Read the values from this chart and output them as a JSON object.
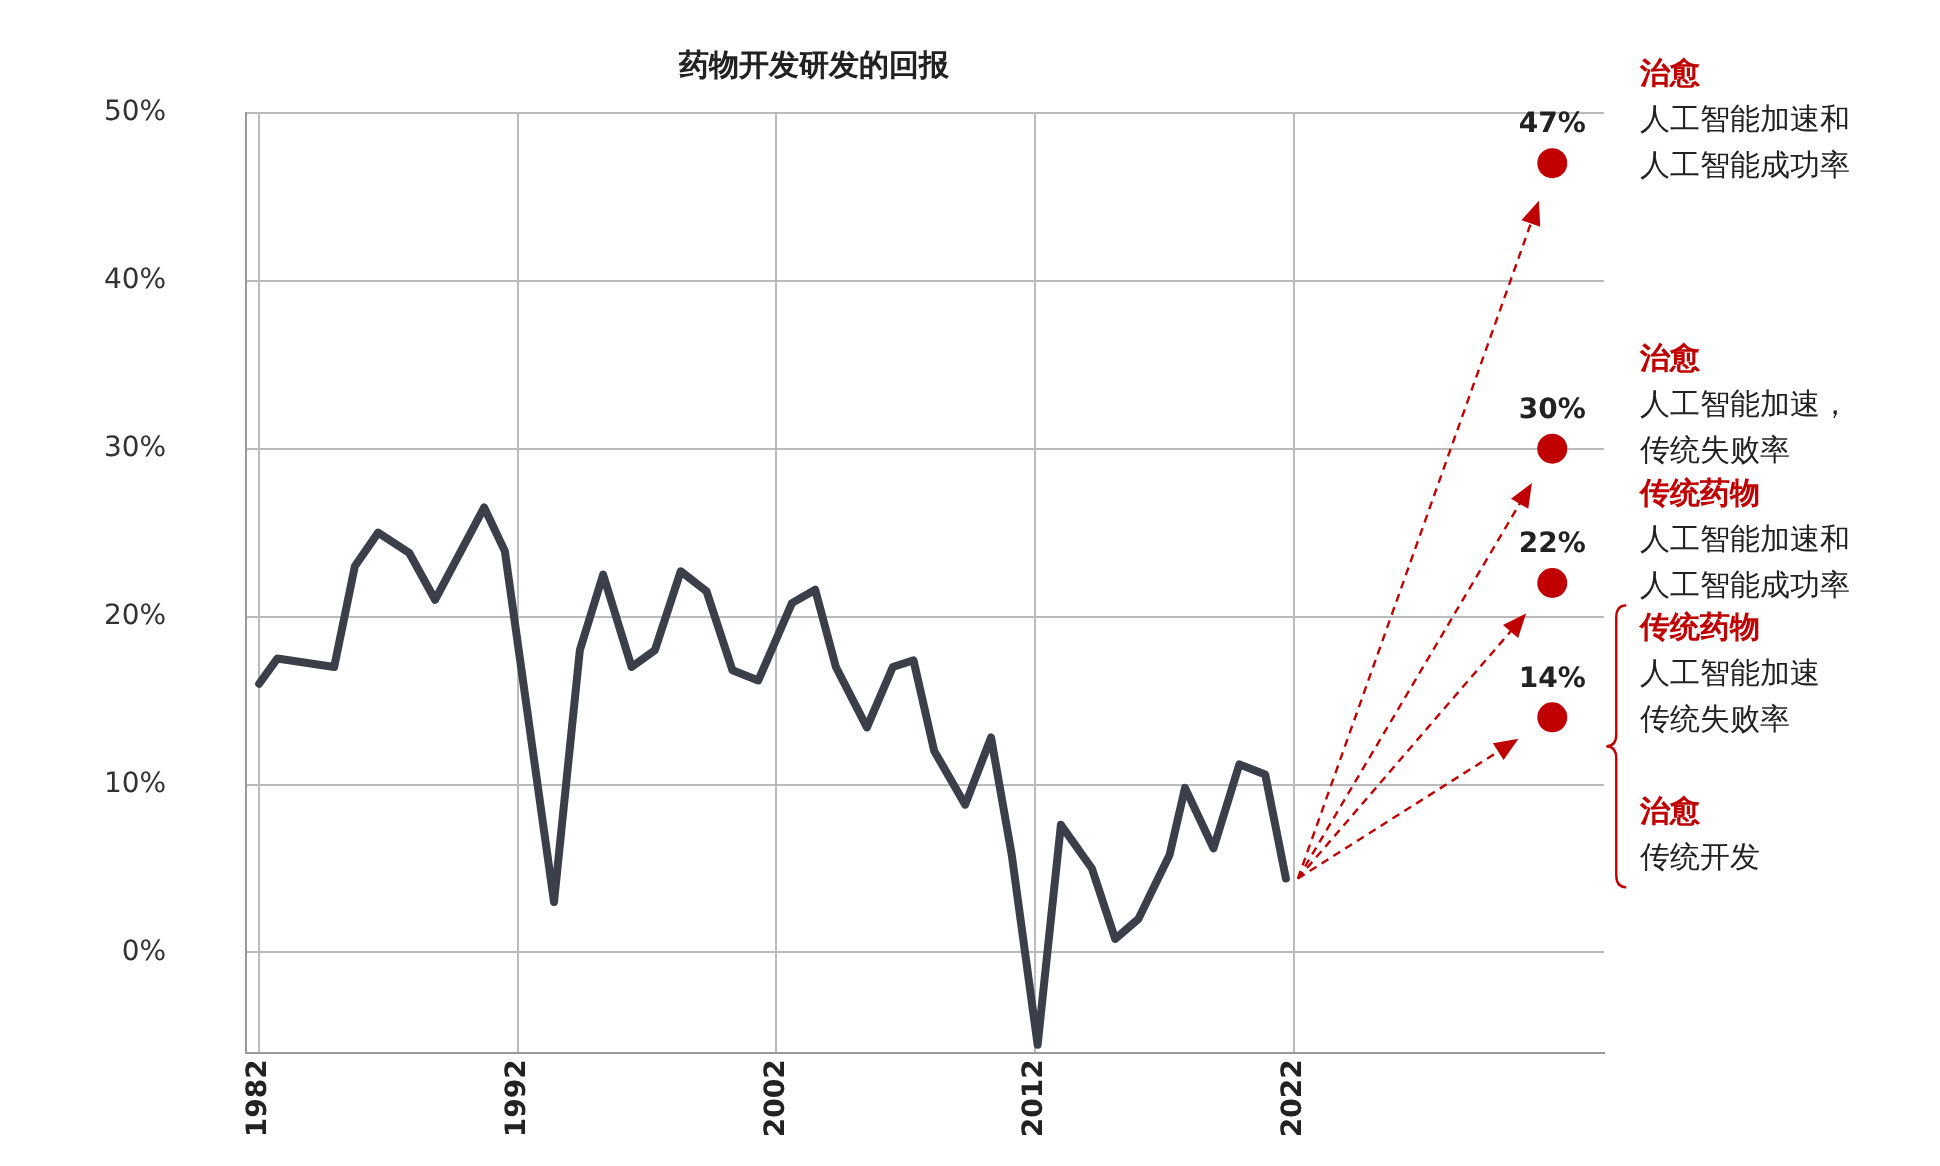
{
  "chart_data": {
    "type": "line",
    "title": "药物开发研发的回报",
    "series": [
      {
        "color": "#3b3f4a",
        "marker": "none",
        "x": [
          1982.0,
          1982.7,
          1984.9,
          1985.7,
          1986.6,
          1987.8,
          1988.8,
          1990.7,
          1991.5,
          1993.4,
          1994.4,
          1995.3,
          1996.4,
          1997.3,
          1998.3,
          1999.3,
          2000.3,
          2001.3,
          2002.6,
          2003.5,
          2004.3,
          2005.5,
          2006.5,
          2007.3,
          2008.1,
          2009.3,
          2010.3,
          2011.1,
          2012.1,
          2013.0,
          2014.2,
          2015.1,
          2016.0,
          2017.2,
          2017.8,
          2018.9,
          2019.9,
          2020.9,
          2021.7
        ],
        "values": [
          16,
          17.5,
          17,
          23,
          25,
          23.8,
          21,
          26.5,
          23.9,
          3,
          18,
          22.5,
          17,
          18,
          22.7,
          21.5,
          16.8,
          16.2,
          20.8,
          21.6,
          17,
          13.4,
          17,
          17.4,
          12,
          8.8,
          12.8,
          5.8,
          -5.5,
          7.6,
          5,
          0.8,
          2,
          5.8,
          9.8,
          6.2,
          11.2,
          10.6,
          4.4
        ]
      },
      {
        "type": "scatter",
        "color": "#c00000",
        "marker": "circle",
        "x": [
          2032,
          2032,
          2032,
          2032
        ],
        "values": [
          47,
          30,
          22,
          14
        ],
        "value_labels": [
          "47%",
          "30%",
          "22%",
          "14%"
        ]
      }
    ],
    "xlim": [
      1981.5,
      2034
    ],
    "xticks": [
      1982,
      1992,
      2002,
      2012,
      2022
    ],
    "ylim": [
      -6,
      50
    ],
    "yticks": [
      {
        "value": 0,
        "label": "0%"
      },
      {
        "value": 10,
        "label": "10%"
      },
      {
        "value": 20,
        "label": "20%"
      },
      {
        "value": 30,
        "label": "30%"
      },
      {
        "value": 40,
        "label": "40%"
      },
      {
        "value": 50,
        "label": "50%"
      }
    ],
    "grid": true,
    "annotations": [
      "治愈",
      "人工智能加速和",
      "人工智能成功率",
      "治愈",
      "人工智能加速，",
      "传统失败率",
      "传统药物",
      "人工智能加速和",
      "人工智能成功率",
      "传统药物",
      "人工智能加速",
      "传统失败率",
      "治愈",
      "传统开发"
    ]
  }
}
